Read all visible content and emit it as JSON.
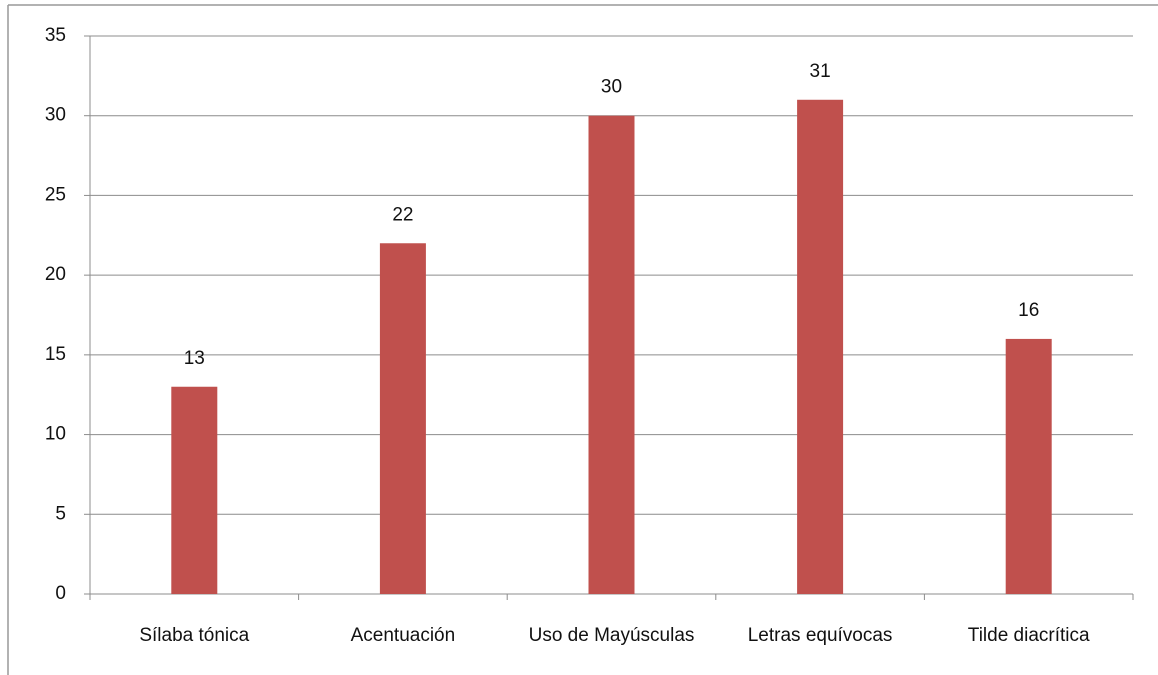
{
  "chart_data": {
    "type": "bar",
    "categories": [
      "Sílaba tónica",
      "Acentuación",
      "Uso de Mayúsculas",
      "Letras equívocas",
      "Tilde diacrítica"
    ],
    "values": [
      13,
      22,
      30,
      31,
      16
    ],
    "color": "#c0504d",
    "ylim": [
      0,
      35
    ],
    "yticks": [
      0,
      5,
      10,
      15,
      20,
      25,
      30,
      35
    ],
    "grid": true
  }
}
